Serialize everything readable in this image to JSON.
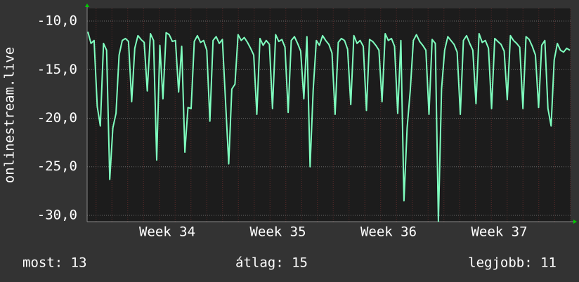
{
  "chart_data": {
    "type": "line",
    "y_label": "onlinestream.live",
    "x_labels": [
      "Week 34",
      "Week 35",
      "Week 36",
      "Week 37"
    ],
    "ylim": [
      -30.65,
      -8.7
    ],
    "yticks": [
      {
        "value": -10,
        "label": "-10,0"
      },
      {
        "value": -15,
        "label": "-15,0"
      },
      {
        "value": -20,
        "label": "-20,0"
      },
      {
        "value": -25,
        "label": "-25,0"
      },
      {
        "value": -30,
        "label": "-30,0"
      }
    ],
    "grid": true,
    "color": "#7fffbf",
    "values": [
      -11.1,
      -12.3,
      -12.0,
      -18.8,
      -20.8,
      -12.3,
      -13.0,
      -26.3,
      -21.0,
      -19.5,
      -13.5,
      -12.0,
      -11.8,
      -12.1,
      -18.3,
      -12.8,
      -11.5,
      -11.9,
      -12.2,
      -17.2,
      -11.3,
      -12.0,
      -24.3,
      -12.5,
      -18.0,
      -11.2,
      -11.4,
      -12.1,
      -12.0,
      -17.3,
      -12.6,
      -23.5,
      -18.9,
      -19.0,
      -12.1,
      -11.5,
      -12.2,
      -12.0,
      -13.0,
      -20.3,
      -12.0,
      -11.6,
      -12.3,
      -11.9,
      -18.3,
      -24.7,
      -17.0,
      -16.5,
      -11.4,
      -12.0,
      -11.7,
      -12.2,
      -12.8,
      -13.5,
      -19.6,
      -11.8,
      -12.5,
      -12.0,
      -12.4,
      -19.0,
      -11.4,
      -12.1,
      -11.9,
      -12.7,
      -19.4,
      -12.0,
      -11.6,
      -12.3,
      -13.1,
      -18.0,
      -11.6,
      -25.0,
      -17.1,
      -12.0,
      -12.5,
      -11.5,
      -12.0,
      -12.4,
      -13.3,
      -19.6,
      -12.2,
      -11.8,
      -12.0,
      -12.9,
      -18.6,
      -11.5,
      -12.3,
      -12.0,
      -12.6,
      -19.2,
      -11.9,
      -12.1,
      -12.5,
      -13.0,
      -18.3,
      -11.3,
      -12.0,
      -11.8,
      -12.6,
      -19.5,
      -12.0,
      -28.5,
      -21.0,
      -17.2,
      -12.0,
      -11.4,
      -12.1,
      -12.5,
      -13.0,
      -19.6,
      -11.9,
      -12.3,
      -30.6,
      -17.0,
      -13.0,
      -11.6,
      -12.0,
      -12.4,
      -13.2,
      -19.6,
      -12.0,
      -11.5,
      -12.3,
      -13.0,
      -18.5,
      -11.3,
      -12.2,
      -12.0,
      -12.8,
      -19.0,
      -11.8,
      -12.1,
      -12.4,
      -13.1,
      -18.1,
      -11.5,
      -12.0,
      -12.3,
      -12.7,
      -19.0,
      -11.6,
      -11.9,
      -12.6,
      -13.5,
      -18.9,
      -12.5,
      -12.0,
      -19.0,
      -20.8,
      -14.0,
      -12.3,
      -13.0,
      -13.2,
      -12.8,
      -13.0
    ]
  },
  "footer": {
    "current": "most: 13",
    "average": "átlag: 15",
    "best": "legjobb: 11"
  }
}
